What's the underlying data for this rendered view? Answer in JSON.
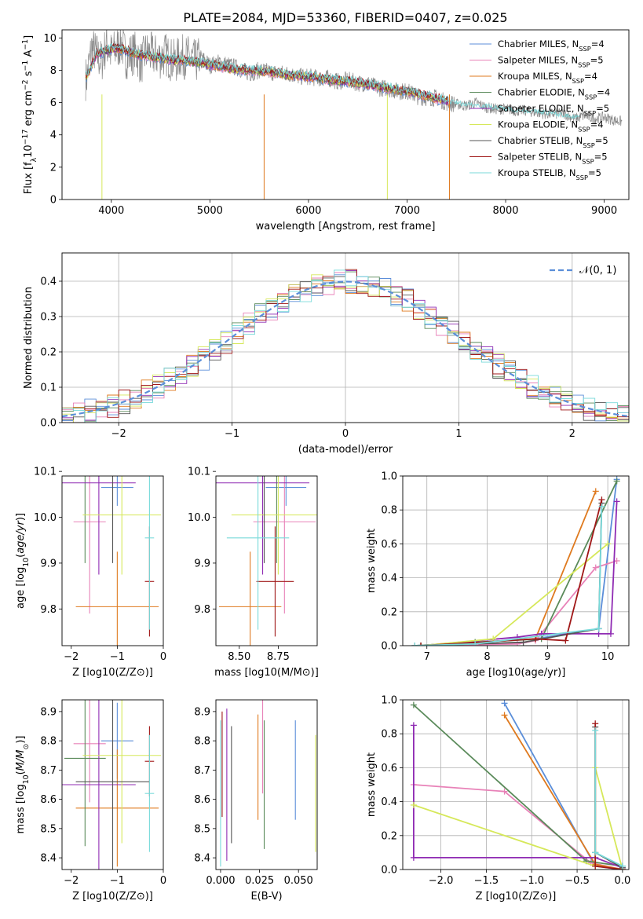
{
  "figure": {
    "title": "PLATE=2084, MJD=53360, FIBERID=0407, z=0.025"
  },
  "colors": {
    "Chabrier MILES": "#5b8ed9",
    "Salpeter MILES": "#e882b8",
    "Kroupa MILES": "#df7a1f",
    "Chabrier ELODIE": "#5a8a5a",
    "Salpeter ELODIE": "#8f2bb3",
    "Kroupa ELODIE": "#d6e85a",
    "Chabrier STELIB": "#555555",
    "Salpeter STELIB": "#a01818",
    "Kroupa STELIB": "#78dada"
  },
  "chart_data": [
    {
      "type": "line",
      "id": "spectrum",
      "title": "PLATE=2084, MJD=53360, FIBERID=0407, z=0.025",
      "xlabel": "wavelength [Angstrom, rest frame]",
      "ylabel": "Flux [f_λ 10^-17 erg cm^-2 s^-1 A^-1]",
      "xlim": [
        3500,
        9250
      ],
      "ylim": [
        0,
        10.5
      ],
      "xticks": [
        "4000",
        "5000",
        "6000",
        "7000",
        "8000",
        "9000"
      ],
      "yticks": [
        "0",
        "2",
        "4",
        "6",
        "8",
        "10"
      ],
      "legend_position": "top-right",
      "legend": [
        {
          "model": "Chabrier MILES",
          "label": "Chabrier MILES, N",
          "sub": "SSP",
          "value": "=4"
        },
        {
          "model": "Salpeter MILES",
          "label": "Salpeter MILES, N",
          "sub": "SSP",
          "value": "=5"
        },
        {
          "model": "Kroupa MILES",
          "label": "Kroupa MILES, N",
          "sub": "SSP",
          "value": "=4"
        },
        {
          "model": "Chabrier ELODIE",
          "label": "Chabrier ELODIE, N",
          "sub": "SSP",
          "value": "=4"
        },
        {
          "model": "Salpeter ELODIE",
          "label": "Salpeter ELODIE, N",
          "sub": "SSP",
          "value": "=5"
        },
        {
          "model": "Kroupa ELODIE",
          "label": "Kroupa ELODIE, N",
          "sub": "SSP",
          "value": "=4"
        },
        {
          "model": "Chabrier STELIB",
          "label": "Chabrier STELIB, N",
          "sub": "SSP",
          "value": "=5"
        },
        {
          "model": "Salpeter STELIB",
          "label": "Salpeter STELIB, N",
          "sub": "SSP",
          "value": "=5"
        },
        {
          "model": "Kroupa STELIB",
          "label": "Kroupa STELIB, N",
          "sub": "SSP",
          "value": "=5"
        }
      ],
      "series": [
        {
          "name": "data",
          "x": [
            3750,
            3800,
            3850,
            3900,
            3950,
            4000,
            4050,
            4100,
            4150,
            4200,
            4250,
            4300,
            4350,
            4400,
            4450,
            4500,
            4550,
            4600,
            4650,
            4700,
            4750,
            4800,
            4850,
            4900,
            4950,
            5000,
            5100,
            5200,
            5300,
            5400,
            5500,
            5600,
            5700,
            5800,
            5900,
            6000,
            6100,
            6200,
            6300,
            6400,
            6500,
            6600,
            6700,
            6800,
            6900,
            7000,
            7100,
            7200,
            7300,
            7400,
            7500,
            7600,
            7700,
            7800,
            7900,
            8000,
            8100,
            8200,
            8300,
            8400,
            8500,
            8600,
            8700,
            8800,
            8900,
            9000,
            9100,
            9200
          ],
          "y": [
            7.5,
            9.4,
            9.0,
            8.5,
            9.6,
            9.0,
            9.3,
            9.7,
            8.8,
            9.0,
            9.1,
            8.4,
            9.1,
            9.0,
            8.9,
            8.8,
            9.0,
            8.7,
            8.5,
            8.9,
            8.8,
            8.8,
            8.5,
            8.8,
            8.6,
            8.3,
            8.5,
            8.3,
            8.1,
            7.8,
            8.0,
            7.9,
            7.8,
            7.8,
            7.6,
            7.6,
            7.5,
            7.5,
            7.3,
            7.4,
            7.2,
            7.2,
            6.9,
            6.9,
            6.7,
            6.7,
            6.4,
            6.3,
            6.3,
            6.0,
            5.9,
            5.8,
            6.0,
            5.7,
            5.6,
            5.6,
            5.5,
            5.5,
            5.4,
            5.3,
            5.3,
            5.3,
            5.0,
            5.2,
            5.0,
            5.1,
            4.9,
            4.8
          ]
        },
        {
          "name": "model",
          "x": [
            3750,
            3850,
            3950,
            4050,
            4150,
            4250,
            4350,
            4450,
            4550,
            4650,
            4750,
            4850,
            4950,
            5050,
            5200,
            5400,
            5600,
            5800,
            6000,
            6200,
            6400,
            6600,
            6800,
            7000,
            7200,
            7400,
            7600,
            7800,
            8000,
            8200,
            8400,
            8600,
            8800,
            9000,
            9200
          ],
          "y": [
            7.6,
            9.0,
            9.2,
            9.4,
            9.2,
            9.0,
            8.9,
            8.8,
            8.7,
            8.6,
            8.6,
            8.5,
            8.4,
            8.3,
            8.1,
            8.0,
            7.9,
            7.7,
            7.6,
            7.4,
            7.3,
            7.1,
            6.9,
            6.7,
            6.4,
            6.1,
            5.9,
            5.8,
            5.6,
            5.5,
            5.4,
            5.2,
            5.1,
            5.0,
            4.9
          ]
        }
      ]
    },
    {
      "type": "line",
      "id": "normed-distribution",
      "xlabel": "(data-model)/error",
      "ylabel": "Normed distribution",
      "xlim": [
        -2.5,
        2.5
      ],
      "ylim": [
        0,
        0.48
      ],
      "xticks": [
        "−2",
        "−1",
        "0",
        "1",
        "2"
      ],
      "yticks": [
        "0.0",
        "0.1",
        "0.2",
        "0.3",
        "0.4"
      ],
      "grid": true,
      "legend_position": "top-right",
      "legend": [
        {
          "label": "𝒩(0, 1)"
        }
      ],
      "histogram_bin_width": 0.1
    },
    {
      "type": "scatter",
      "id": "age-vs-z",
      "xlabel": "Z [log10(Z/Z⊙)]",
      "ylabel": "age [log10(age/yr)]",
      "xlim": [
        -2.2,
        0
      ],
      "ylim": [
        9.72,
        10.09
      ],
      "xticks": [
        "−2",
        "−1",
        "0"
      ],
      "yticks": [
        "9.8",
        "9.9",
        "10.0",
        "10.1"
      ],
      "errorbars": [
        {
          "model": "Chabrier MILES",
          "x": -1.0,
          "xerr": 0.35,
          "y": 10.065,
          "yerr": 0.04
        },
        {
          "model": "Salpeter MILES",
          "x": -1.6,
          "xerr": 0.35,
          "y": 9.99,
          "yerr": 0.2
        },
        {
          "model": "Kroupa MILES",
          "x": -1.0,
          "xerr": 0.9,
          "y": 9.805,
          "yerr": 0.12
        },
        {
          "model": "Chabrier ELODIE",
          "x": -1.7,
          "xerr": 0.45,
          "y": 10.1,
          "yerr": 0.2
        },
        {
          "model": "Salpeter ELODIE",
          "x": -1.4,
          "xerr": 0.8,
          "y": 10.075,
          "yerr": 0.2
        },
        {
          "model": "Kroupa ELODIE",
          "x": -0.9,
          "xerr": 0.85,
          "y": 10.005,
          "yerr": 0.13
        },
        {
          "model": "Chabrier STELIB",
          "x": -1.1,
          "xerr": 0.8,
          "y": 10.1,
          "yerr": 0.2
        },
        {
          "model": "Salpeter STELIB",
          "x": -0.3,
          "xerr": 0.1,
          "y": 9.86,
          "yerr": 0.12
        },
        {
          "model": "Kroupa STELIB",
          "x": -0.3,
          "xerr": 0.1,
          "y": 9.955,
          "yerr": 0.2
        }
      ]
    },
    {
      "type": "scatter",
      "id": "age-vs-mass",
      "xlabel": "mass [log10(M/M⊙)]",
      "ylabel": "",
      "xlim": [
        8.35,
        9.0
      ],
      "ylim": [
        9.72,
        10.09
      ],
      "xticks": [
        "8.50",
        "8.75"
      ],
      "yticks": [
        "9.8",
        "9.9",
        "10.0",
        "10.1"
      ],
      "errorbars": [
        {
          "model": "Chabrier MILES",
          "x": 8.8,
          "xerr": 0.13,
          "y": 10.065,
          "yerr": 0.04
        },
        {
          "model": "Salpeter MILES",
          "x": 8.79,
          "xerr": 0.2,
          "y": 9.99,
          "yerr": 0.2
        },
        {
          "model": "Kroupa MILES",
          "x": 8.57,
          "xerr": 0.2,
          "y": 9.805,
          "yerr": 0.12
        },
        {
          "model": "Chabrier ELODIE",
          "x": 8.74,
          "xerr": 0.3,
          "y": 10.1,
          "yerr": 0.2
        },
        {
          "model": "Salpeter ELODIE",
          "x": 8.65,
          "xerr": 0.3,
          "y": 10.075,
          "yerr": 0.2
        },
        {
          "model": "Kroupa ELODIE",
          "x": 8.75,
          "xerr": 0.3,
          "y": 10.005,
          "yerr": 0.13
        },
        {
          "model": "Chabrier STELIB",
          "x": 8.66,
          "xerr": 0.3,
          "y": 10.1,
          "yerr": 0.2
        },
        {
          "model": "Salpeter STELIB",
          "x": 8.73,
          "xerr": 0.12,
          "y": 9.86,
          "yerr": 0.12
        },
        {
          "model": "Kroupa STELIB",
          "x": 8.62,
          "xerr": 0.2,
          "y": 9.955,
          "yerr": 0.2
        }
      ]
    },
    {
      "type": "line",
      "id": "mass-weight-vs-age",
      "xlabel": "age [log10(age/yr)]",
      "ylabel": "mass weight",
      "xlim": [
        6.6,
        10.35
      ],
      "ylim": [
        0,
        1.0
      ],
      "xticks": [
        "7",
        "8",
        "9",
        "10"
      ],
      "yticks": [
        "0.0",
        "0.2",
        "0.4",
        "0.6",
        "0.8",
        "1.0"
      ],
      "grid": true,
      "series": [
        {
          "model": "Chabrier MILES",
          "x": [
            6.8,
            7.8,
            8.8,
            9.85,
            10.15
          ],
          "y": [
            0.0,
            0.02,
            0.04,
            0.1,
            0.98
          ]
        },
        {
          "model": "Salpeter MILES",
          "x": [
            6.8,
            8.5,
            8.8,
            9.8,
            10.15
          ],
          "y": [
            0.0,
            0.01,
            0.03,
            0.46,
            0.5
          ]
        },
        {
          "model": "Kroupa MILES",
          "x": [
            6.9,
            8.8,
            9.8
          ],
          "y": [
            0.0,
            0.04,
            0.91
          ]
        },
        {
          "model": "Chabrier ELODIE",
          "x": [
            6.8,
            7.8,
            8.9,
            10.15
          ],
          "y": [
            0.0,
            0.02,
            0.04,
            0.97
          ]
        },
        {
          "model": "Salpeter ELODIE",
          "x": [
            6.9,
            8.5,
            8.9,
            9.85,
            10.05,
            10.15
          ],
          "y": [
            0.0,
            0.05,
            0.07,
            0.07,
            0.07,
            0.85
          ]
        },
        {
          "model": "Kroupa ELODIE",
          "x": [
            6.9,
            8.1,
            10.0
          ],
          "y": [
            0.0,
            0.04,
            0.6
          ]
        },
        {
          "model": "Chabrier STELIB",
          "x": [
            6.9,
            8.6,
            9.85,
            9.9
          ],
          "y": [
            0.0,
            0.02,
            0.1,
            0.84
          ]
        },
        {
          "model": "Salpeter STELIB",
          "x": [
            6.9,
            8.8,
            9.3,
            9.9
          ],
          "y": [
            0.0,
            0.04,
            0.03,
            0.86
          ]
        },
        {
          "model": "Kroupa STELIB",
          "x": [
            6.8,
            7.8,
            9.85,
            9.9
          ],
          "y": [
            0.0,
            0.01,
            0.1,
            0.82
          ]
        }
      ]
    },
    {
      "type": "scatter",
      "id": "mass-vs-z",
      "xlabel": "Z [log10(Z/Z⊙)]",
      "ylabel": "mass [log10(M/M⊙)]",
      "xlim": [
        -2.2,
        0
      ],
      "ylim": [
        8.36,
        8.94
      ],
      "xticks": [
        "−2",
        "−1",
        "0"
      ],
      "yticks": [
        "8.4",
        "8.5",
        "8.6",
        "8.7",
        "8.8",
        "8.9"
      ],
      "errorbars": [
        {
          "model": "Chabrier MILES",
          "x": -1.0,
          "xerr": 0.35,
          "y": 8.8,
          "yerr": 0.13
        },
        {
          "model": "Salpeter MILES",
          "x": -1.6,
          "xerr": 0.35,
          "y": 8.79,
          "yerr": 0.2
        },
        {
          "model": "Kroupa MILES",
          "x": -1.0,
          "xerr": 0.9,
          "y": 8.57,
          "yerr": 0.2
        },
        {
          "model": "Chabrier ELODIE",
          "x": -1.7,
          "xerr": 0.45,
          "y": 8.74,
          "yerr": 0.3
        },
        {
          "model": "Salpeter ELODIE",
          "x": -1.4,
          "xerr": 0.8,
          "y": 8.65,
          "yerr": 0.3
        },
        {
          "model": "Kroupa ELODIE",
          "x": -0.9,
          "xerr": 0.85,
          "y": 8.75,
          "yerr": 0.3
        },
        {
          "model": "Chabrier STELIB",
          "x": -1.1,
          "xerr": 0.8,
          "y": 8.66,
          "yerr": 0.3
        },
        {
          "model": "Salpeter STELIB",
          "x": -0.3,
          "xerr": 0.1,
          "y": 8.73,
          "yerr": 0.12
        },
        {
          "model": "Kroupa STELIB",
          "x": -0.3,
          "xerr": 0.1,
          "y": 8.62,
          "yerr": 0.2
        }
      ]
    },
    {
      "type": "scatter",
      "id": "mass-vs-ebv",
      "xlabel": "E(B-V)",
      "ylabel": "",
      "xlim": [
        -0.003,
        0.062
      ],
      "ylim": [
        8.36,
        8.94
      ],
      "xticks": [
        "0.000",
        "0.025",
        "0.050"
      ],
      "yticks": [
        "8.4",
        "8.5",
        "8.6",
        "8.7",
        "8.8",
        "8.9"
      ],
      "errorbars": [
        {
          "model": "Chabrier MILES",
          "x": 0.048,
          "y": 8.7,
          "yerr": 0.17
        },
        {
          "model": "Salpeter MILES",
          "x": 0.027,
          "y": 8.78,
          "yerr": 0.16
        },
        {
          "model": "Kroupa MILES",
          "x": 0.024,
          "y": 8.71,
          "yerr": 0.18
        },
        {
          "model": "Chabrier ELODIE",
          "x": 0.028,
          "y": 8.65,
          "yerr": 0.22
        },
        {
          "model": "Salpeter ELODIE",
          "x": 0.004,
          "y": 8.65,
          "yerr": 0.26
        },
        {
          "model": "Kroupa ELODIE",
          "x": 0.061,
          "y": 8.62,
          "yerr": 0.2
        },
        {
          "model": "Chabrier STELIB",
          "x": 0.007,
          "y": 8.65,
          "yerr": 0.2
        },
        {
          "model": "Salpeter STELIB",
          "x": 0.001,
          "y": 8.72,
          "yerr": 0.18
        },
        {
          "model": "Kroupa STELIB",
          "x": 0.0,
          "y": 8.62,
          "yerr": 0.25
        }
      ]
    },
    {
      "type": "line",
      "id": "mass-weight-vs-z",
      "xlabel": "Z [log10(Z/Z⊙)]",
      "ylabel": "mass weight",
      "xlim": [
        -2.42,
        0.07
      ],
      "ylim": [
        0,
        1.0
      ],
      "xticks": [
        "−2.0",
        "−1.5",
        "−1.0",
        "−0.5",
        "0.0"
      ],
      "yticks": [
        "0.0",
        "0.2",
        "0.4",
        "0.6",
        "0.8",
        "1.0"
      ],
      "grid": true,
      "series": [
        {
          "model": "Chabrier MILES",
          "x": [
            -1.3,
            -0.3,
            0.0
          ],
          "y": [
            0.98,
            0.02,
            0.0
          ]
        },
        {
          "model": "Salpeter MILES",
          "x": [
            -2.3,
            -1.3,
            -0.35,
            0.0
          ],
          "y": [
            0.5,
            0.46,
            0.04,
            0.0
          ]
        },
        {
          "model": "Kroupa MILES",
          "x": [
            -1.3,
            -0.3,
            0.0
          ],
          "y": [
            0.91,
            0.03,
            0.0
          ]
        },
        {
          "model": "Chabrier ELODIE",
          "x": [
            -2.3,
            -0.4,
            0.0
          ],
          "y": [
            0.97,
            0.05,
            0.02
          ]
        },
        {
          "model": "Salpeter ELODIE",
          "x": [
            -2.3,
            -2.3,
            -0.3,
            0.0
          ],
          "y": [
            0.85,
            0.07,
            0.07,
            0.01
          ]
        },
        {
          "model": "Kroupa ELODIE",
          "x": [
            -2.3,
            -0.3,
            -0.3,
            0.0
          ],
          "y": [
            0.38,
            0.02,
            0.6,
            0.0
          ]
        },
        {
          "model": "Chabrier STELIB",
          "x": [
            -0.3,
            -0.3,
            0.0
          ],
          "y": [
            0.84,
            0.1,
            0.01
          ]
        },
        {
          "model": "Salpeter STELIB",
          "x": [
            -0.3,
            -0.3,
            0.0
          ],
          "y": [
            0.86,
            0.02,
            0.0
          ]
        },
        {
          "model": "Kroupa STELIB",
          "x": [
            -0.3,
            -0.3,
            0.0
          ],
          "y": [
            0.82,
            0.1,
            0.02
          ]
        }
      ]
    }
  ]
}
